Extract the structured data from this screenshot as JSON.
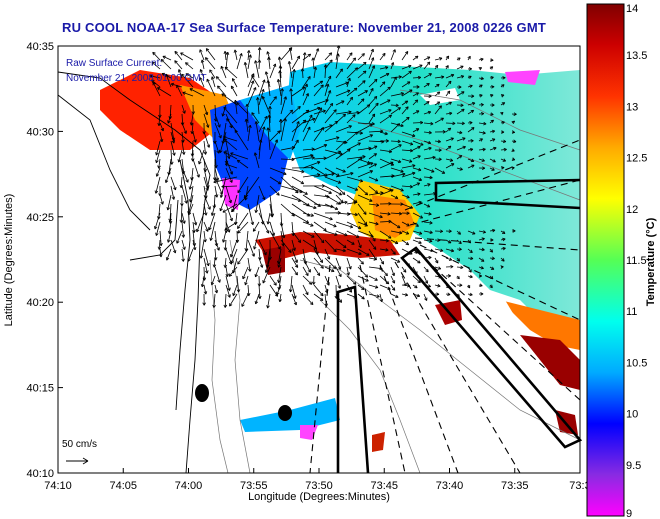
{
  "chart_data": {
    "type": "heatmap",
    "title": "RU COOL  NOAA-17  Sea Surface Temperature:  November 21, 2008 0226 GMT",
    "annotation_line1": "Raw Surface Current:",
    "annotation_line2": "November 21, 2008 01:00 GMT",
    "xlabel": "Longitude (Degrees:Minutes)",
    "ylabel": "Latitude (Degrees:Minutes)",
    "x_ticks": [
      "74:10",
      "74:05",
      "74:00",
      "73:55",
      "73:50",
      "73:45",
      "73:40",
      "73:35",
      "73:3"
    ],
    "y_ticks": [
      "40:35",
      "40:30",
      "40:25",
      "40:20",
      "40:15",
      "40:10"
    ],
    "x_range_deg_min": [
      "74:10",
      "73:30"
    ],
    "y_range_deg_min": [
      "40:10",
      "40:35"
    ],
    "scale_arrow_label": "50 cm/s",
    "colorbar": {
      "label": "Temperature (°C)",
      "min": 9,
      "max": 14,
      "ticks": [
        "14",
        "13.5",
        "13",
        "12.5",
        "12",
        "11.5",
        "11",
        "10.5",
        "10",
        "9.5",
        "9"
      ],
      "colors": [
        "#ff00ff",
        "#8a2be2",
        "#0000ff",
        "#00aaff",
        "#00ffee",
        "#55ff55",
        "#ffff00",
        "#ffaa00",
        "#ff3300",
        "#cc0000",
        "#800000"
      ]
    },
    "land_color": "#ffffff",
    "coastline_color": "#000000"
  }
}
